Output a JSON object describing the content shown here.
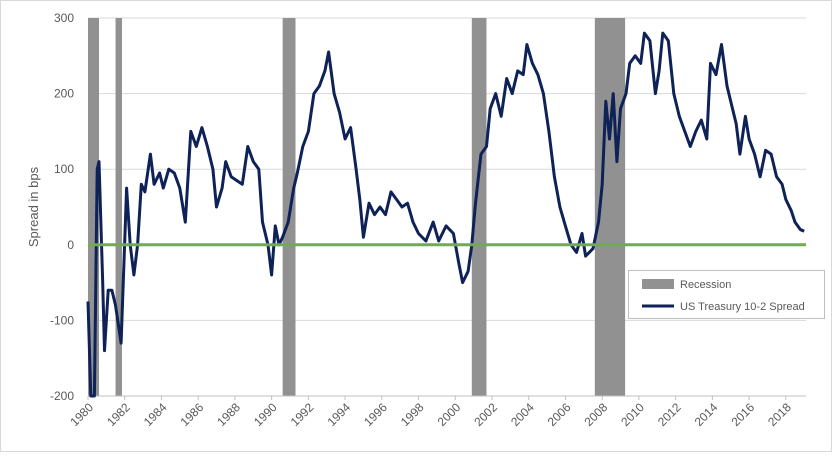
{
  "chart_data": {
    "type": "line",
    "y_label": "Spread in bps",
    "xlim": [
      1980,
      2019.1
    ],
    "xticks": [
      1980,
      1982,
      1984,
      1986,
      1988,
      1990,
      1992,
      1994,
      1996,
      1998,
      2000,
      2002,
      2004,
      2006,
      2008,
      2010,
      2012,
      2014,
      2016,
      2018
    ],
    "ylim": [
      -200,
      300
    ],
    "yticks": [
      -200,
      -100,
      0,
      100,
      200,
      300
    ],
    "grid": true,
    "legend": "lower right",
    "recessions": {
      "name": "Recession",
      "color": "#919191",
      "spans": [
        [
          1980.0,
          1980.6
        ],
        [
          1981.5,
          1981.85
        ],
        [
          1990.6,
          1991.3
        ],
        [
          2000.9,
          2001.7
        ],
        [
          2007.6,
          2009.25
        ]
      ]
    },
    "zero_line": {
      "value": 0,
      "color": "#70ad47"
    },
    "series": [
      {
        "name": "US Treasury 10-2 Spread",
        "color": "#0e2258",
        "x": [
          1980.0,
          1980.15,
          1980.35,
          1980.5,
          1980.6,
          1980.8,
          1980.9,
          1981.1,
          1981.3,
          1981.5,
          1981.8,
          1982.1,
          1982.3,
          1982.5,
          1982.7,
          1982.9,
          1983.1,
          1983.4,
          1983.6,
          1983.9,
          1984.1,
          1984.4,
          1984.7,
          1985.0,
          1985.3,
          1985.6,
          1985.9,
          1986.2,
          1986.5,
          1986.8,
          1987.0,
          1987.3,
          1987.5,
          1987.8,
          1988.1,
          1988.4,
          1988.7,
          1989.0,
          1989.3,
          1989.5,
          1989.8,
          1990.0,
          1990.2,
          1990.4,
          1990.6,
          1990.9,
          1991.2,
          1991.4,
          1991.7,
          1992.0,
          1992.3,
          1992.6,
          1992.9,
          1993.1,
          1993.4,
          1993.7,
          1994.0,
          1994.3,
          1994.6,
          1994.8,
          1995.0,
          1995.3,
          1995.6,
          1995.9,
          1996.2,
          1996.5,
          1996.8,
          1997.1,
          1997.4,
          1997.7,
          1998.0,
          1998.4,
          1998.8,
          1999.1,
          1999.5,
          1999.9,
          2000.2,
          2000.4,
          2000.7,
          2000.9,
          2001.1,
          2001.4,
          2001.7,
          2001.9,
          2002.2,
          2002.5,
          2002.8,
          2003.1,
          2003.4,
          2003.7,
          2003.9,
          2004.2,
          2004.5,
          2004.8,
          2005.1,
          2005.4,
          2005.7,
          2006.0,
          2006.3,
          2006.6,
          2006.9,
          2007.1,
          2007.5,
          2007.8,
          2008.0,
          2008.2,
          2008.4,
          2008.6,
          2008.8,
          2009.0,
          2009.3,
          2009.5,
          2009.8,
          2010.1,
          2010.3,
          2010.6,
          2010.9,
          2011.1,
          2011.3,
          2011.6,
          2011.9,
          2012.2,
          2012.5,
          2012.8,
          2013.1,
          2013.4,
          2013.7,
          2013.9,
          2014.2,
          2014.5,
          2014.8,
          2015.1,
          2015.3,
          2015.5,
          2015.8,
          2016.0,
          2016.3,
          2016.6,
          2016.9,
          2017.2,
          2017.5,
          2017.8,
          2018.0,
          2018.3,
          2018.5,
          2018.8,
          2019.0
        ],
        "values": [
          -75,
          -200,
          -200,
          100,
          110,
          -50,
          -140,
          -60,
          -60,
          -80,
          -130,
          75,
          0,
          -40,
          0,
          80,
          70,
          120,
          80,
          95,
          75,
          100,
          95,
          75,
          30,
          150,
          130,
          155,
          130,
          100,
          50,
          75,
          110,
          90,
          85,
          80,
          130,
          110,
          100,
          30,
          0,
          -40,
          25,
          0,
          10,
          30,
          75,
          95,
          130,
          150,
          200,
          210,
          230,
          255,
          200,
          175,
          140,
          155,
          100,
          60,
          10,
          55,
          40,
          50,
          40,
          70,
          60,
          50,
          55,
          30,
          15,
          5,
          30,
          5,
          25,
          15,
          -25,
          -50,
          -35,
          0,
          55,
          120,
          130,
          180,
          200,
          170,
          220,
          200,
          230,
          225,
          265,
          240,
          225,
          200,
          150,
          90,
          50,
          25,
          0,
          -10,
          15,
          -15,
          -5,
          30,
          80,
          190,
          140,
          200,
          110,
          180,
          200,
          240,
          250,
          240,
          280,
          270,
          200,
          230,
          280,
          270,
          200,
          170,
          150,
          130,
          150,
          165,
          140,
          240,
          225,
          265,
          210,
          180,
          160,
          120,
          170,
          140,
          120,
          90,
          125,
          120,
          90,
          80,
          60,
          45,
          30,
          20,
          18
        ]
      }
    ]
  }
}
